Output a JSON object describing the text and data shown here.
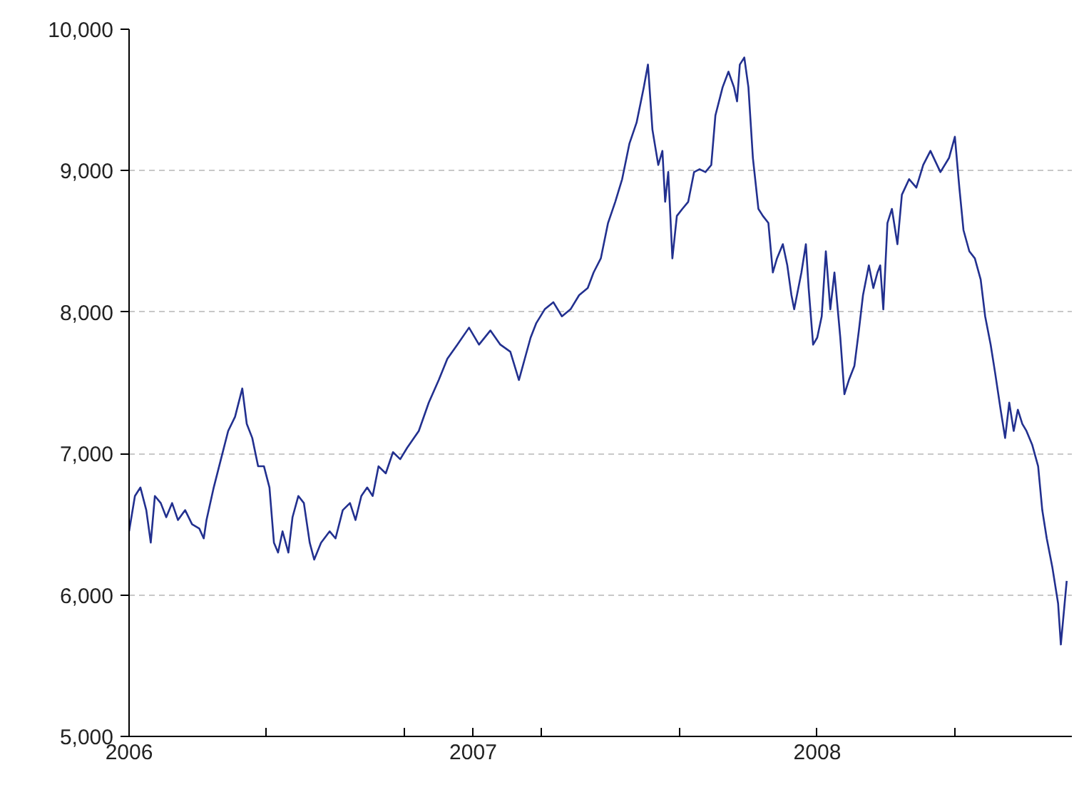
{
  "chart_data": {
    "type": "line",
    "x": [
      2006.0,
      2006.017,
      2006.033,
      2006.05,
      2006.063,
      2006.075,
      2006.092,
      2006.108,
      2006.125,
      2006.142,
      2006.163,
      2006.183,
      2006.204,
      2006.217,
      2006.225,
      2006.246,
      2006.267,
      2006.288,
      2006.308,
      2006.329,
      2006.342,
      2006.358,
      2006.375,
      2006.392,
      2006.408,
      2006.421,
      2006.433,
      2006.446,
      2006.463,
      2006.475,
      2006.492,
      2006.508,
      2006.525,
      2006.538,
      2006.558,
      2006.583,
      2006.6,
      2006.621,
      2006.642,
      2006.658,
      2006.675,
      2006.692,
      2006.708,
      2006.725,
      2006.746,
      2006.767,
      2006.788,
      2006.808,
      2006.842,
      2006.871,
      2006.9,
      2006.925,
      2006.954,
      2006.988,
      2007.017,
      2007.05,
      2007.079,
      2007.108,
      2007.133,
      2007.15,
      2007.167,
      2007.183,
      2007.208,
      2007.233,
      2007.258,
      2007.283,
      2007.308,
      2007.333,
      2007.35,
      2007.371,
      2007.392,
      2007.413,
      2007.433,
      2007.454,
      2007.475,
      2007.496,
      2007.508,
      2007.521,
      2007.538,
      2007.55,
      2007.558,
      2007.567,
      2007.579,
      2007.592,
      2007.608,
      2007.625,
      2007.642,
      2007.658,
      2007.675,
      2007.692,
      2007.704,
      2007.725,
      2007.742,
      2007.758,
      2007.767,
      2007.775,
      2007.788,
      2007.8,
      2007.813,
      2007.829,
      2007.842,
      2007.858,
      2007.871,
      2007.883,
      2007.9,
      2007.913,
      2007.925,
      2007.933,
      2007.954,
      2007.967,
      2007.975,
      2007.988,
      2008.0,
      2008.013,
      2008.025,
      2008.038,
      2008.05,
      2008.067,
      2008.079,
      2008.092,
      2008.108,
      2008.121,
      2008.133,
      2008.15,
      2008.163,
      2008.175,
      2008.183,
      2008.192,
      2008.204,
      2008.217,
      2008.233,
      2008.246,
      2008.267,
      2008.288,
      2008.308,
      2008.329,
      2008.358,
      2008.383,
      2008.4,
      2008.413,
      2008.425,
      2008.442,
      2008.458,
      2008.475,
      2008.488,
      2008.504,
      2008.517,
      2008.533,
      2008.546,
      2008.558,
      2008.571,
      2008.583,
      2008.596,
      2008.608,
      2008.625,
      2008.642,
      2008.654,
      2008.667,
      2008.683,
      2008.7,
      2008.708,
      2008.725
    ],
    "values": [
      6450,
      6700,
      6760,
      6600,
      6370,
      6700,
      6650,
      6550,
      6650,
      6530,
      6600,
      6500,
      6470,
      6400,
      6530,
      6760,
      6960,
      7160,
      7260,
      7460,
      7210,
      7110,
      6910,
      6910,
      6760,
      6370,
      6300,
      6450,
      6300,
      6550,
      6700,
      6650,
      6370,
      6250,
      6370,
      6450,
      6400,
      6600,
      6650,
      6530,
      6700,
      6760,
      6700,
      6910,
      6860,
      7010,
      6960,
      7040,
      7160,
      7360,
      7520,
      7670,
      7770,
      7890,
      7770,
      7870,
      7770,
      7720,
      7520,
      7670,
      7820,
      7920,
      8020,
      8070,
      7970,
      8020,
      8120,
      8170,
      8280,
      8380,
      8630,
      8780,
      8940,
      9190,
      9340,
      9590,
      9750,
      9290,
      9040,
      9140,
      8780,
      8990,
      8380,
      8680,
      8730,
      8780,
      8990,
      9010,
      8990,
      9040,
      9390,
      9590,
      9700,
      9590,
      9490,
      9750,
      9800,
      9590,
      9090,
      8730,
      8680,
      8630,
      8280,
      8380,
      8480,
      8330,
      8120,
      8020,
      8280,
      8480,
      8170,
      7770,
      7820,
      7970,
      8430,
      8020,
      8280,
      7820,
      7420,
      7520,
      7620,
      7870,
      8120,
      8330,
      8170,
      8280,
      8330,
      8020,
      8630,
      8730,
      8480,
      8830,
      8940,
      8880,
      9040,
      9140,
      8990,
      9090,
      9240,
      8880,
      8580,
      8430,
      8380,
      8230,
      7970,
      7770,
      7570,
      7310,
      7110,
      7360,
      7160,
      7310,
      7210,
      7160,
      7060,
      6910,
      6600,
      6400,
      6200,
      5940,
      5650,
      6100
    ],
    "color": "#22308f",
    "xlim": [
      2006.0,
      2008.74
    ],
    "xticks": [
      {
        "value": 2006.0,
        "label": "2006"
      },
      {
        "value": 2006.4,
        "label": null
      },
      {
        "value": 2006.8,
        "label": null
      },
      {
        "value": 2007.0,
        "label": "2007"
      },
      {
        "value": 2007.2,
        "label": null
      },
      {
        "value": 2007.6,
        "label": null
      },
      {
        "value": 2008.0,
        "label": "2008"
      },
      {
        "value": 2008.4,
        "label": null
      }
    ],
    "ylim": [
      5000,
      10000
    ],
    "yticks": [
      {
        "value": 5000,
        "label": "5,000"
      },
      {
        "value": 6000,
        "label": "6,000"
      },
      {
        "value": 7000,
        "label": "7,000"
      },
      {
        "value": 8000,
        "label": "8,000"
      },
      {
        "value": 9000,
        "label": "9,000"
      },
      {
        "value": 10000,
        "label": "10,000"
      }
    ],
    "grid": "y",
    "marker": "none",
    "line_style": "solid"
  }
}
